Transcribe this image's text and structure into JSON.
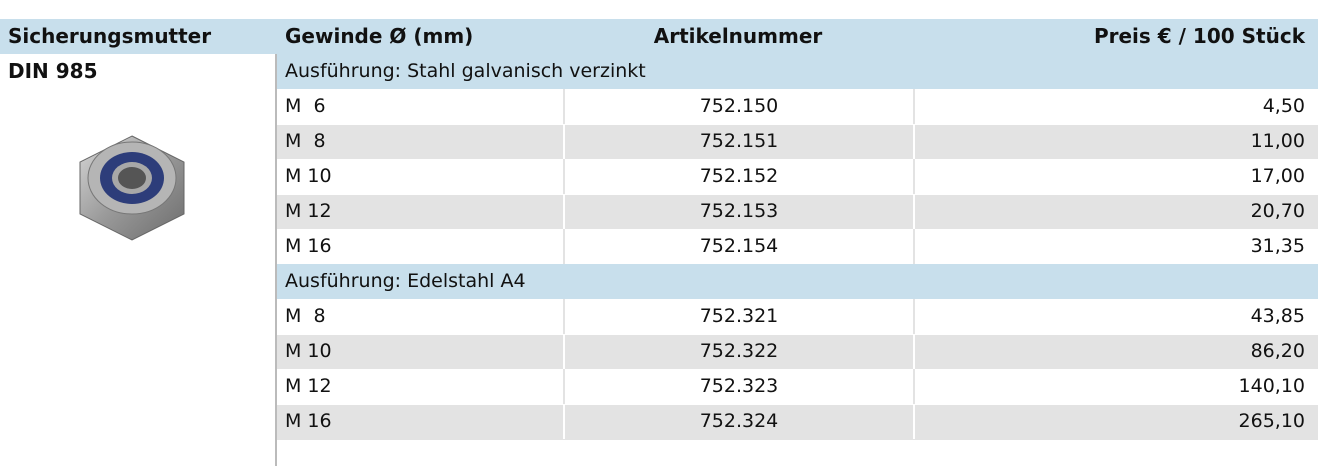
{
  "header": {
    "columns": [
      "Sicherungsmutter",
      "Gewinde Ø (mm)",
      "Artikelnummer",
      "Preis € / 100 Stück"
    ]
  },
  "product": {
    "name": "DIN 985"
  },
  "sections": [
    {
      "title": "Ausführung: Stahl galvanisch verzinkt",
      "rows": [
        [
          "M  6",
          "752.150",
          "4,50"
        ],
        [
          "M  8",
          "752.151",
          "11,00"
        ],
        [
          "M 10",
          "752.152",
          "17,00"
        ],
        [
          "M 12",
          "752.153",
          "20,70"
        ],
        [
          "M 16",
          "752.154",
          "31,35"
        ]
      ]
    },
    {
      "title": "Ausführung: Edelstahl A4",
      "rows": [
        [
          "M  8",
          "752.321",
          "43,85"
        ],
        [
          "M 10",
          "752.322",
          "86,20"
        ],
        [
          "M 12",
          "752.323",
          "140,10"
        ],
        [
          "M 16",
          "752.324",
          "265,10"
        ]
      ]
    }
  ]
}
